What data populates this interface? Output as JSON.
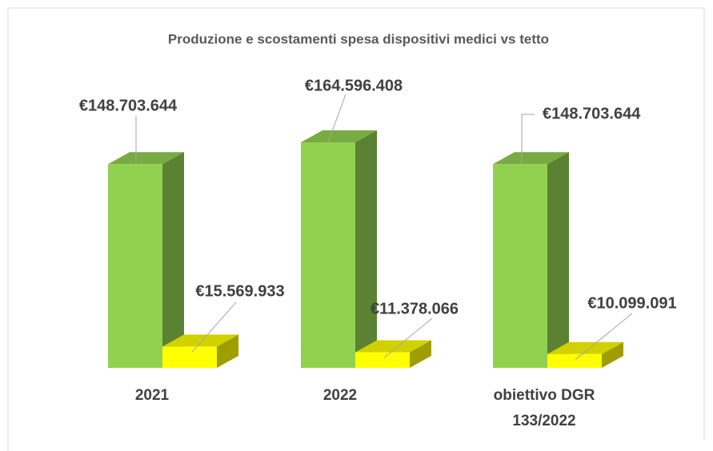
{
  "chart_data": {
    "type": "bar3d",
    "title": "Produzione e scostamenti spesa dispositivi medici vs tetto",
    "categories": [
      "2021",
      "2022",
      "obiettivo DGR 133/2022"
    ],
    "series": [
      {
        "color": "#92d050",
        "values": [
          148703644,
          164596408,
          148703644
        ],
        "value_labels": [
          "€148.703.644",
          "€164.596.408",
          "€148.703.644"
        ]
      },
      {
        "color": "#ffff00",
        "values": [
          15569933,
          11378066,
          10099091
        ],
        "value_labels": [
          "€15.569.933",
          "€11.378.066",
          "€10.099.091"
        ]
      }
    ]
  }
}
